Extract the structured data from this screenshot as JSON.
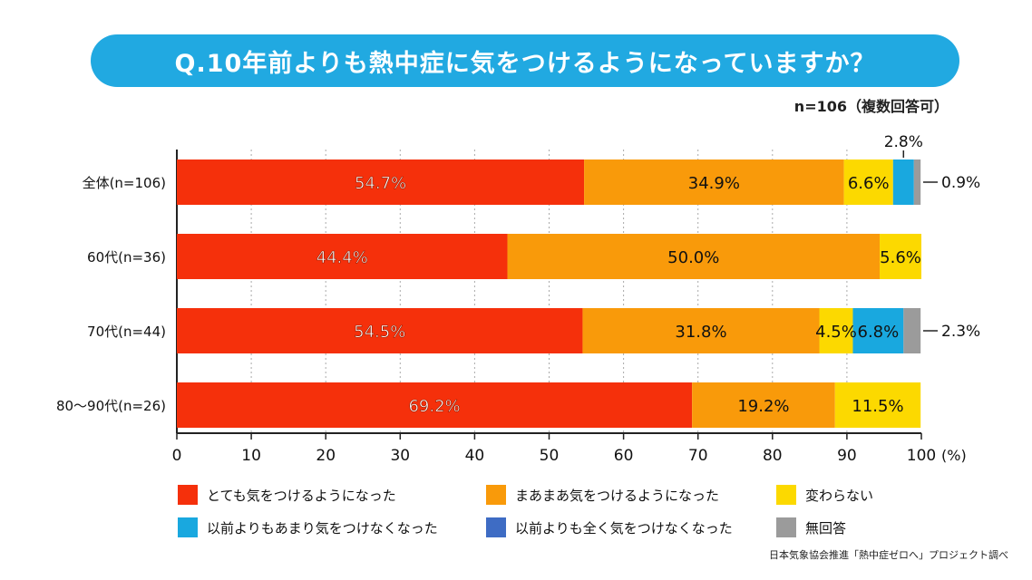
{
  "title": "Q.10年前よりも熱中症に気をつけるようになっていますか？",
  "sample_note": "n=106（複数回答可）",
  "source": "日本気象協会推進「熱中症ゼロへ」プロジェクト調べ",
  "colors": {
    "very_careful": "#f5300b",
    "somewhat_careful": "#f99a0a",
    "unchanged": "#fcd900",
    "less_careful": "#19a8df",
    "not_careful_at_all": "#3e6cc4",
    "no_answer": "#9b9b9b"
  },
  "chart_data": {
    "type": "bar",
    "orientation": "horizontal",
    "stacked": true,
    "categories": [
      "全体(n=106)",
      "60代(n=36)",
      "70代(n=44)",
      "80～90代(n=26)"
    ],
    "series": [
      {
        "name": "とても気をつけるようになった",
        "values": [
          54.7,
          44.4,
          54.5,
          69.2
        ],
        "labels": [
          "54.7%",
          "44.4%",
          "54.5%",
          "69.2%"
        ]
      },
      {
        "name": "まあまあ気をつけるようになった",
        "values": [
          34.9,
          50.0,
          31.8,
          19.2
        ],
        "labels": [
          "34.9%",
          "50.0%",
          "31.8%",
          "19.2%"
        ]
      },
      {
        "name": "変わらない",
        "values": [
          6.6,
          5.6,
          4.5,
          11.5
        ],
        "labels": [
          "6.6%",
          "5.6%",
          "4.5%",
          "11.5%"
        ]
      },
      {
        "name": "以前よりもあまり気をつけなくなった",
        "values": [
          2.8,
          0,
          6.8,
          0
        ],
        "labels": [
          "2.8%",
          "",
          "6.8%",
          ""
        ]
      },
      {
        "name": "以前よりも全く気をつけなくなった",
        "values": [
          0,
          0,
          0,
          0
        ],
        "labels": [
          "",
          "",
          "",
          ""
        ]
      },
      {
        "name": "無回答",
        "values": [
          0.9,
          0,
          2.3,
          0
        ],
        "labels": [
          "0.9%",
          "",
          "2.3%",
          ""
        ]
      }
    ],
    "xlim": [
      0,
      100
    ],
    "xticks": [
      "0",
      "10",
      "20",
      "30",
      "40",
      "50",
      "60",
      "70",
      "80",
      "90",
      "100"
    ],
    "xunit": "(%)",
    "grid": "vertical-dotted",
    "legend_position": "bottom"
  }
}
